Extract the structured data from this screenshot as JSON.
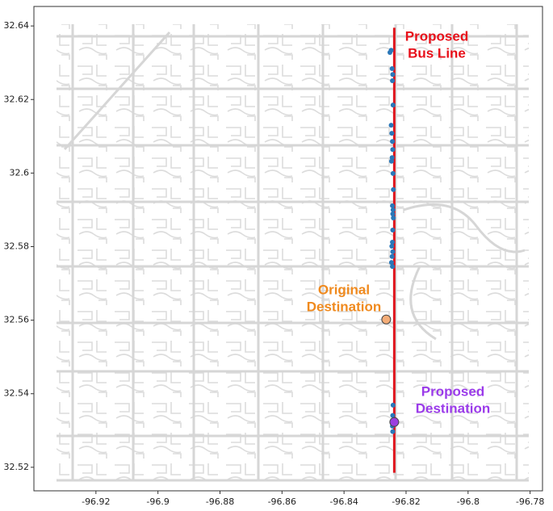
{
  "chart_data": {
    "type": "scatter",
    "xlim": [
      -96.94,
      -96.776
    ],
    "ylim": [
      32.5136,
      32.6453
    ],
    "xticks": [
      -96.92,
      -96.9,
      -96.88,
      -96.86,
      -96.84,
      -96.82,
      -96.8,
      -96.78
    ],
    "yticks": [
      32.52,
      32.54,
      32.56,
      32.58,
      32.6,
      32.62,
      32.64
    ],
    "series": [
      {
        "style": "line",
        "color": "#e0161e",
        "x": [
          -96.8238,
          -96.8238
        ],
        "y": [
          32.5185,
          32.6395
        ]
      },
      {
        "style": "points",
        "color": "#2a77b8",
        "x": [
          -96.8248,
          -96.8252,
          -96.8245,
          -96.8243,
          -96.8244,
          -96.8242,
          -96.8248,
          -96.8246,
          -96.8244,
          -96.8243,
          -96.8245,
          -96.8247,
          -96.8242,
          -96.8241,
          -96.8244,
          -96.8242,
          -96.8243,
          -96.8241,
          -96.8243,
          -96.8244,
          -96.8246,
          -96.8243,
          -96.8245,
          -96.8247,
          -96.8244,
          -96.8242,
          -96.8243,
          -96.8244,
          -96.8243
        ],
        "y": [
          32.6334,
          32.6328,
          32.6284,
          32.6268,
          32.6251,
          32.6185,
          32.613,
          32.6108,
          32.6086,
          32.6064,
          32.6042,
          32.6032,
          32.5999,
          32.5955,
          32.5911,
          32.59,
          32.5889,
          32.5878,
          32.5845,
          32.5812,
          32.5801,
          32.5786,
          32.5773,
          32.5757,
          32.5746,
          32.5369,
          32.5341,
          32.5312,
          32.5297
        ]
      },
      {
        "style": "points",
        "color": "#f4ad78",
        "x": [
          -96.8264
        ],
        "y": [
          32.5602
        ]
      },
      {
        "style": "points",
        "color": "#9b3fe0",
        "x": [
          -96.8238
        ],
        "y": [
          32.5323
        ]
      }
    ],
    "annotations": [
      {
        "lines": [
          "Proposed",
          "Bus Line"
        ],
        "color": "#e8101a"
      },
      {
        "lines": [
          "Original",
          "Destination"
        ],
        "color": "#f08a1e"
      },
      {
        "lines": [
          "Proposed",
          "Destination"
        ],
        "color": "#9b3bea"
      }
    ]
  }
}
